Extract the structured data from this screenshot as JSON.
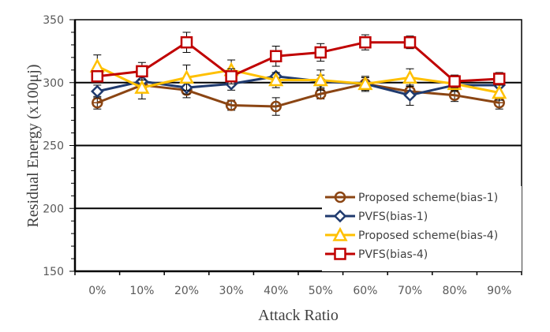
{
  "chart_data": {
    "type": "line",
    "title": "",
    "xlabel": "Attack Ratio",
    "ylabel": "Residual Energy (x100μj)",
    "categories": [
      "0%",
      "10%",
      "20%",
      "30%",
      "40%",
      "50%",
      "60%",
      "70%",
      "80%",
      "90%"
    ],
    "ylim": [
      150,
      350
    ],
    "yticks": [
      "150",
      "200",
      "250",
      "300",
      "350"
    ],
    "y_minor_step": 10,
    "gridlines": [
      200,
      250,
      300
    ],
    "legend_position": "bottom-right",
    "series": [
      {
        "name": "Proposed scheme(bias-1)",
        "color": "#8B4513",
        "marker": "circle",
        "values": [
          284,
          298,
          294,
          282,
          281,
          291,
          299,
          293,
          290,
          284
        ],
        "errors": [
          5,
          5,
          6,
          4,
          7,
          4,
          5,
          5,
          5,
          5
        ]
      },
      {
        "name": "PVFS(bias-1)",
        "color": "#1F3A6E",
        "marker": "diamond",
        "values": [
          293,
          301,
          296,
          299,
          305,
          301,
          299,
          290,
          298,
          298
        ],
        "errors": [
          5,
          6,
          5,
          5,
          3,
          5,
          6,
          8,
          5,
          6
        ]
      },
      {
        "name": "Proposed scheme(bias-4)",
        "color": "#FFC000",
        "marker": "triangle",
        "values": [
          313,
          296,
          304,
          310,
          302,
          302,
          299,
          304,
          299,
          292
        ],
        "errors": [
          9,
          9,
          10,
          8,
          6,
          8,
          5,
          7,
          5,
          6
        ]
      },
      {
        "name": "PVFS(bias-4)",
        "color": "#C00000",
        "marker": "square",
        "values": [
          305,
          309,
          332,
          305,
          321,
          324,
          332,
          332,
          301,
          303
        ],
        "errors": [
          4,
          7,
          8,
          6,
          8,
          7,
          6,
          5,
          5,
          5
        ]
      }
    ]
  }
}
